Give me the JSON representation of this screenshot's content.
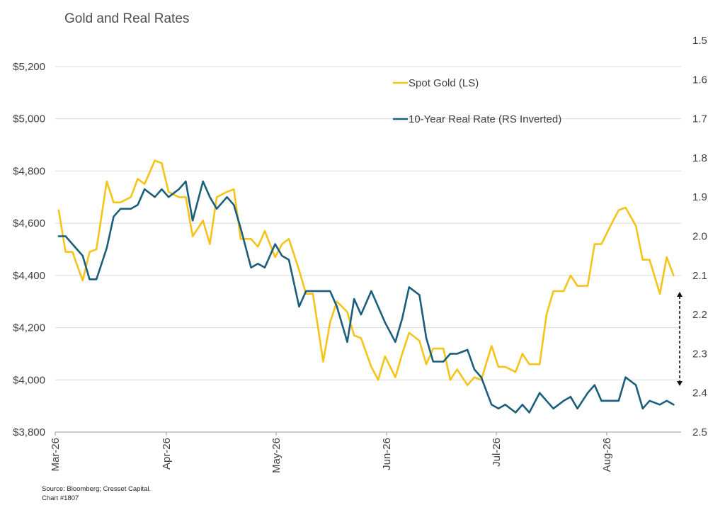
{
  "title": "Gold and Real Rates",
  "source": "Source: Bloomberg; Cresset Capital.",
  "chart_number": "Chart #1807",
  "colors": {
    "gold": "#F5C31A",
    "real_rate": "#1B5E7C",
    "grid": "#d9d9d9",
    "axis": "#9a9a9a"
  },
  "chart_data": {
    "type": "line",
    "title": "Gold and Real Rates",
    "x_tick_labels": [
      "Mar-26",
      "Apr-26",
      "May-26",
      "Jun-26",
      "Jul-26",
      "Aug-26"
    ],
    "left_axis": {
      "ylim": [
        3800,
        5200
      ],
      "ticks": [
        3800,
        4000,
        4200,
        4400,
        4600,
        4800,
        5000,
        5200
      ],
      "tick_labels": [
        "$3,800",
        "$4,000",
        "$4,200",
        "$4,400",
        "$4,600",
        "$4,800",
        "$5,000",
        "$5,200"
      ]
    },
    "right_axis": {
      "ylim": [
        1.5,
        2.5
      ],
      "inverted": true,
      "ticks": [
        1.5,
        1.6,
        1.7,
        1.8,
        1.9,
        2.0,
        2.1,
        2.2,
        2.3,
        2.4,
        2.5
      ],
      "tick_labels": [
        "1.5",
        "1.6",
        "1.7",
        "1.8",
        "1.9",
        "2.0",
        "2.1",
        "2.2",
        "2.3",
        "2.4",
        "2.5"
      ]
    },
    "grid": true,
    "legend_position": "top-right",
    "annotation": "double-headed dashed arrow between series at chart end",
    "series": [
      {
        "name": "Spot Gold (LS)",
        "axis": "left",
        "x": [
          "2026-03-02",
          "2026-03-04",
          "2026-03-06",
          "2026-03-09",
          "2026-03-11",
          "2026-03-13",
          "2026-03-16",
          "2026-03-18",
          "2026-03-20",
          "2026-03-23",
          "2026-03-25",
          "2026-03-27",
          "2026-03-30",
          "2026-04-01",
          "2026-04-03",
          "2026-04-06",
          "2026-04-08",
          "2026-04-10",
          "2026-04-13",
          "2026-04-15",
          "2026-04-17",
          "2026-04-20",
          "2026-04-22",
          "2026-04-24",
          "2026-04-27",
          "2026-04-29",
          "2026-05-01",
          "2026-05-04",
          "2026-05-06",
          "2026-05-08",
          "2026-05-11",
          "2026-05-13",
          "2026-05-15",
          "2026-05-18",
          "2026-05-20",
          "2026-05-22",
          "2026-05-25",
          "2026-05-27",
          "2026-05-29",
          "2026-06-01",
          "2026-06-03",
          "2026-06-05",
          "2026-06-08",
          "2026-06-10",
          "2026-06-12",
          "2026-06-15",
          "2026-06-17",
          "2026-06-19",
          "2026-06-22",
          "2026-06-24",
          "2026-06-26",
          "2026-06-29",
          "2026-07-01",
          "2026-07-03",
          "2026-07-06",
          "2026-07-08",
          "2026-07-10",
          "2026-07-13",
          "2026-07-15",
          "2026-07-17",
          "2026-07-20",
          "2026-07-22",
          "2026-07-24",
          "2026-07-27",
          "2026-07-29",
          "2026-07-31",
          "2026-08-03",
          "2026-08-05",
          "2026-08-07",
          "2026-08-10",
          "2026-08-12",
          "2026-08-14",
          "2026-08-17",
          "2026-08-19",
          "2026-08-21",
          "2026-08-24",
          "2026-08-26",
          "2026-08-28"
        ],
        "values": [
          4650,
          4490,
          4490,
          4380,
          4490,
          4500,
          4760,
          4680,
          4680,
          4700,
          4770,
          4750,
          4840,
          4830,
          4720,
          4700,
          4700,
          4550,
          4610,
          4520,
          4700,
          4720,
          4730,
          4540,
          4540,
          4510,
          4570,
          4470,
          4520,
          4540,
          4420,
          4330,
          4330,
          4070,
          4220,
          4300,
          4260,
          4170,
          4160,
          4050,
          4000,
          4090,
          4010,
          4100,
          4180,
          4150,
          4060,
          4120,
          4120,
          4000,
          4040,
          3980,
          4010,
          4000,
          4130,
          4050,
          4050,
          4030,
          4100,
          4060,
          4060,
          4250,
          4340,
          4340,
          4400,
          4360,
          4360,
          4520,
          4520,
          4600,
          4650,
          4660,
          4590,
          4460,
          4460,
          4330,
          4470,
          4400
        ]
      },
      {
        "name": "10-Year Real Rate (RS Inverted)",
        "axis": "right",
        "x": [
          "2026-03-02",
          "2026-03-04",
          "2026-03-06",
          "2026-03-09",
          "2026-03-11",
          "2026-03-13",
          "2026-03-16",
          "2026-03-18",
          "2026-03-20",
          "2026-03-23",
          "2026-03-25",
          "2026-03-27",
          "2026-03-30",
          "2026-04-01",
          "2026-04-03",
          "2026-04-06",
          "2026-04-08",
          "2026-04-10",
          "2026-04-13",
          "2026-04-15",
          "2026-04-17",
          "2026-04-20",
          "2026-04-22",
          "2026-04-24",
          "2026-04-27",
          "2026-04-29",
          "2026-05-01",
          "2026-05-04",
          "2026-05-06",
          "2026-05-08",
          "2026-05-11",
          "2026-05-13",
          "2026-05-15",
          "2026-05-18",
          "2026-05-20",
          "2026-05-22",
          "2026-05-25",
          "2026-05-27",
          "2026-05-29",
          "2026-06-01",
          "2026-06-03",
          "2026-06-05",
          "2026-06-08",
          "2026-06-10",
          "2026-06-12",
          "2026-06-15",
          "2026-06-17",
          "2026-06-19",
          "2026-06-22",
          "2026-06-24",
          "2026-06-26",
          "2026-06-29",
          "2026-07-01",
          "2026-07-03",
          "2026-07-06",
          "2026-07-08",
          "2026-07-10",
          "2026-07-13",
          "2026-07-15",
          "2026-07-17",
          "2026-07-20",
          "2026-07-22",
          "2026-07-24",
          "2026-07-27",
          "2026-07-29",
          "2026-07-31",
          "2026-08-03",
          "2026-08-05",
          "2026-08-07",
          "2026-08-10",
          "2026-08-12",
          "2026-08-14",
          "2026-08-17",
          "2026-08-19",
          "2026-08-21",
          "2026-08-24",
          "2026-08-26",
          "2026-08-28"
        ],
        "values": [
          2.0,
          2.0,
          2.02,
          2.05,
          2.11,
          2.11,
          2.03,
          1.95,
          1.93,
          1.93,
          1.92,
          1.88,
          1.9,
          1.88,
          1.9,
          1.88,
          1.86,
          1.96,
          1.86,
          1.9,
          1.93,
          1.9,
          1.92,
          1.98,
          2.08,
          2.07,
          2.08,
          2.02,
          2.05,
          2.06,
          2.18,
          2.14,
          2.14,
          2.14,
          2.14,
          2.18,
          2.27,
          2.16,
          2.2,
          2.14,
          2.18,
          2.22,
          2.27,
          2.21,
          2.13,
          2.15,
          2.26,
          2.32,
          2.32,
          2.3,
          2.3,
          2.29,
          2.34,
          2.36,
          2.43,
          2.44,
          2.43,
          2.45,
          2.43,
          2.45,
          2.4,
          2.42,
          2.44,
          2.42,
          2.41,
          2.44,
          2.4,
          2.38,
          2.42,
          2.42,
          2.42,
          2.36,
          2.38,
          2.44,
          2.42,
          2.43,
          2.42,
          2.43
        ]
      }
    ]
  }
}
